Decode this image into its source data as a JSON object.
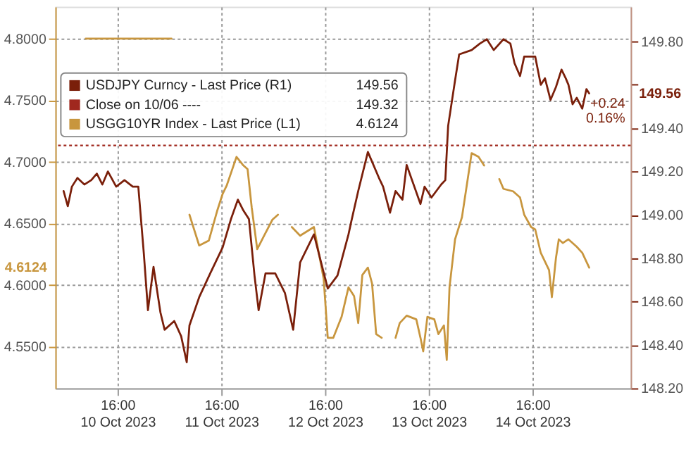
{
  "chart_data": {
    "type": "line",
    "xlim": [
      "2023-10-10T01:36",
      "2023-10-15T14:43"
    ],
    "xticks": [
      {
        "value": "2023-10-10T16:00",
        "label": "16:00\n10 Oct 2023"
      },
      {
        "value": "2023-10-11T16:00",
        "label": "16:00\n11 Oct 2023"
      },
      {
        "value": "2023-10-12T16:00",
        "label": "16:00\n12 Oct 2023"
      },
      {
        "value": "2023-10-13T16:00",
        "label": "16:00\n13 Oct 2023"
      },
      {
        "value": "2023-10-14T16:00",
        "label": "16:00\n14 Oct 2023"
      }
    ],
    "ylim": [
      4.516,
      4.826
    ],
    "yticks": [
      {
        "value": 4.55,
        "label": "4.5500"
      },
      {
        "value": 4.6,
        "label": "4.6000"
      },
      {
        "value": 4.65,
        "label": "4.6500"
      },
      {
        "value": 4.7,
        "label": "4.7000"
      },
      {
        "value": 4.75,
        "label": "4.7500"
      },
      {
        "value": 4.8,
        "label": "4.8000"
      }
    ],
    "y2lim": [
      148.2,
      149.96
    ],
    "y2ticks": [
      {
        "value": 148.2,
        "label": "148.20"
      },
      {
        "value": 148.4,
        "label": "148.40"
      },
      {
        "value": 148.6,
        "label": "148.60"
      },
      {
        "value": 148.8,
        "label": "148.80"
      },
      {
        "value": 149.0,
        "label": "149.00"
      },
      {
        "value": 149.2,
        "label": "149.20"
      },
      {
        "value": 149.4,
        "label": "149.40"
      },
      {
        "value": 149.6,
        "label": null
      },
      {
        "value": 149.8,
        "label": "149.80"
      }
    ],
    "grid": true,
    "legend": "top left",
    "line_style": "solid",
    "series": [
      {
        "name": "USDJPY Curncy - Last Price (R1)",
        "color": "#7a1f0a",
        "axis": "y2",
        "x": [
          "2023-10-10T03:31",
          "2023-10-10T04:29",
          "2023-10-10T05:26",
          "2023-10-10T06:43",
          "2023-10-10T08:19",
          "2023-10-10T09:55",
          "2023-10-10T11:12",
          "2023-10-10T12:29",
          "2023-10-10T13:46",
          "2023-10-10T15:41",
          "2023-10-10T17:36",
          "2023-10-10T19:31",
          "2023-10-10T20:48",
          "2023-10-10T22:05",
          "2023-10-10T23:02",
          "2023-10-11T00:19",
          "2023-10-11T01:55",
          "2023-10-11T02:53",
          "2023-10-11T05:07",
          "2023-10-11T06:43",
          "2023-10-11T08:00",
          "2023-10-11T08:38",
          "2023-10-11T10:53",
          "2023-10-11T13:26",
          "2023-10-11T16:19",
          "2023-10-11T18:14",
          "2023-10-11T19:50",
          "2023-10-11T21:07",
          "2023-10-11T22:24",
          "2023-10-11T23:41",
          "2023-10-12T00:38",
          "2023-10-12T02:14",
          "2023-10-12T04:29",
          "2023-10-12T06:43",
          "2023-10-12T08:38",
          "2023-10-12T10:14",
          "2023-10-12T13:26",
          "2023-10-12T16:38",
          "2023-10-12T18:53",
          "2023-10-12T21:26",
          "2023-10-12T22:05",
          "2023-10-12T23:41",
          "2023-10-13T01:55",
          "2023-10-13T04:29",
          "2023-10-13T05:26",
          "2023-10-13T07:02",
          "2023-10-13T08:19",
          "2023-10-13T09:55",
          "2023-10-13T10:53",
          "2023-10-13T12:29",
          "2023-10-13T14:05",
          "2023-10-13T15:02",
          "2023-10-13T16:38",
          "2023-10-13T18:53",
          "2023-10-13T19:50",
          "2023-10-13T20:29",
          "2023-10-13T22:05",
          "2023-10-13T23:02",
          "2023-10-14T01:55",
          "2023-10-14T03:50",
          "2023-10-14T05:26",
          "2023-10-14T07:02",
          "2023-10-14T09:17",
          "2023-10-14T10:53",
          "2023-10-14T11:50",
          "2023-10-14T13:07",
          "2023-10-14T14:05",
          "2023-10-14T15:02",
          "2023-10-14T16:38",
          "2023-10-14T17:55",
          "2023-10-14T18:53",
          "2023-10-14T20:10",
          "2023-10-14T21:26",
          "2023-10-14T22:43",
          "2023-10-14T23:41",
          "2023-10-15T00:19",
          "2023-10-15T01:17",
          "2023-10-15T02:14",
          "2023-10-15T03:31",
          "2023-10-15T04:29",
          "2023-10-15T05:07"
        ],
        "values": [
          149.11,
          149.04,
          149.13,
          149.17,
          149.14,
          149.16,
          149.19,
          149.14,
          149.2,
          149.13,
          149.16,
          149.13,
          149.13,
          148.82,
          148.56,
          148.76,
          148.55,
          148.47,
          148.51,
          148.44,
          148.32,
          148.49,
          148.62,
          148.73,
          148.85,
          148.98,
          149.07,
          149.02,
          148.98,
          148.72,
          148.56,
          148.73,
          148.73,
          148.64,
          148.47,
          148.78,
          148.91,
          148.66,
          148.72,
          148.91,
          148.97,
          149.11,
          149.29,
          149.17,
          149.13,
          149.01,
          149.11,
          149.07,
          149.23,
          149.14,
          149.05,
          149.13,
          149.08,
          149.14,
          149.16,
          149.41,
          149.62,
          149.74,
          149.76,
          149.79,
          149.81,
          149.76,
          149.81,
          149.79,
          149.7,
          149.64,
          149.73,
          149.73,
          149.73,
          149.6,
          149.63,
          149.53,
          149.59,
          149.67,
          149.63,
          149.6,
          149.51,
          149.54,
          149.49,
          149.58,
          149.56
        ]
      },
      {
        "name": "USGG10YR Index - Last Price (L1)",
        "color": "#c8963e",
        "x": [
          "2023-10-10T08:38",
          "2023-10-11T04:29",
          "2023-10-11T06:24",
          "2023-10-11T08:38",
          "2023-10-11T10:53",
          "2023-10-11T13:07",
          "2023-10-11T15:02",
          "2023-10-11T16:19",
          "2023-10-11T17:17",
          "2023-10-11T19:31",
          "2023-10-11T21:07",
          "2023-10-11T22:05",
          "2023-10-11T23:02",
          "2023-10-12T00:19",
          "2023-10-12T01:55",
          "2023-10-12T03:50",
          "2023-10-12T05:07",
          "2023-10-12T06:43",
          "2023-10-12T08:19",
          "2023-10-12T10:14",
          "2023-10-12T13:26",
          "2023-10-12T15:41",
          "2023-10-12T16:38",
          "2023-10-12T17:55",
          "2023-10-12T19:50",
          "2023-10-12T21:26",
          "2023-10-12T22:43",
          "2023-10-12T23:41",
          "2023-10-13T00:38",
          "2023-10-13T01:55",
          "2023-10-13T02:53",
          "2023-10-13T03:50",
          "2023-10-13T05:07",
          "2023-10-13T06:43",
          "2023-10-13T08:19",
          "2023-10-13T09:17",
          "2023-10-13T10:53",
          "2023-10-13T13:07",
          "2023-10-13T14:05",
          "2023-10-13T14:43",
          "2023-10-13T15:41",
          "2023-10-13T17:17",
          "2023-10-13T18:14",
          "2023-10-13T19:31",
          "2023-10-13T20:10",
          "2023-10-13T20:48",
          "2023-10-13T22:05",
          "2023-10-13T23:41",
          "2023-10-14T01:55",
          "2023-10-14T03:31",
          "2023-10-14T04:48",
          "2023-10-14T06:24",
          "2023-10-14T08:19",
          "2023-10-14T09:17",
          "2023-10-14T11:31",
          "2023-10-14T13:07",
          "2023-10-14T14:05",
          "2023-10-14T15:41",
          "2023-10-14T16:38",
          "2023-10-14T17:55",
          "2023-10-14T19:50",
          "2023-10-14T20:29",
          "2023-10-14T21:26",
          "2023-10-14T22:05",
          "2023-10-14T23:02",
          "2023-10-15T00:19",
          "2023-10-15T01:17",
          "2023-10-15T02:14",
          "2023-10-15T03:31",
          "2023-10-15T05:07"
        ],
        "values": [
          4.8,
          4.8,
          null,
          4.657,
          4.632,
          4.636,
          4.66,
          4.674,
          4.681,
          4.704,
          4.697,
          4.694,
          4.663,
          4.629,
          4.64,
          4.653,
          4.657,
          null,
          4.647,
          4.64,
          4.647,
          4.605,
          4.557,
          4.557,
          4.574,
          4.598,
          4.591,
          4.569,
          4.608,
          4.614,
          4.601,
          4.56,
          4.557,
          null,
          4.557,
          4.569,
          4.575,
          4.572,
          4.557,
          4.546,
          4.574,
          4.572,
          4.56,
          4.567,
          4.539,
          4.598,
          4.637,
          4.655,
          4.707,
          4.704,
          4.697,
          null,
          4.686,
          4.678,
          4.676,
          4.671,
          4.657,
          4.647,
          4.645,
          4.626,
          4.612,
          4.59,
          4.622,
          4.637,
          4.634,
          4.637,
          4.634,
          4.631,
          4.626,
          4.614
        ]
      }
    ],
    "ref_lines": [
      {
        "axis": "y2",
        "value": 149.32,
        "label": "Close on 10/06 ----",
        "color": "#a0281e",
        "line_style": "dotted"
      }
    ],
    "annotations": [
      "149.56",
      "149.32",
      "4.6124",
      "+0.24",
      "0.16%",
      "149.56",
      "4.6124"
    ]
  }
}
